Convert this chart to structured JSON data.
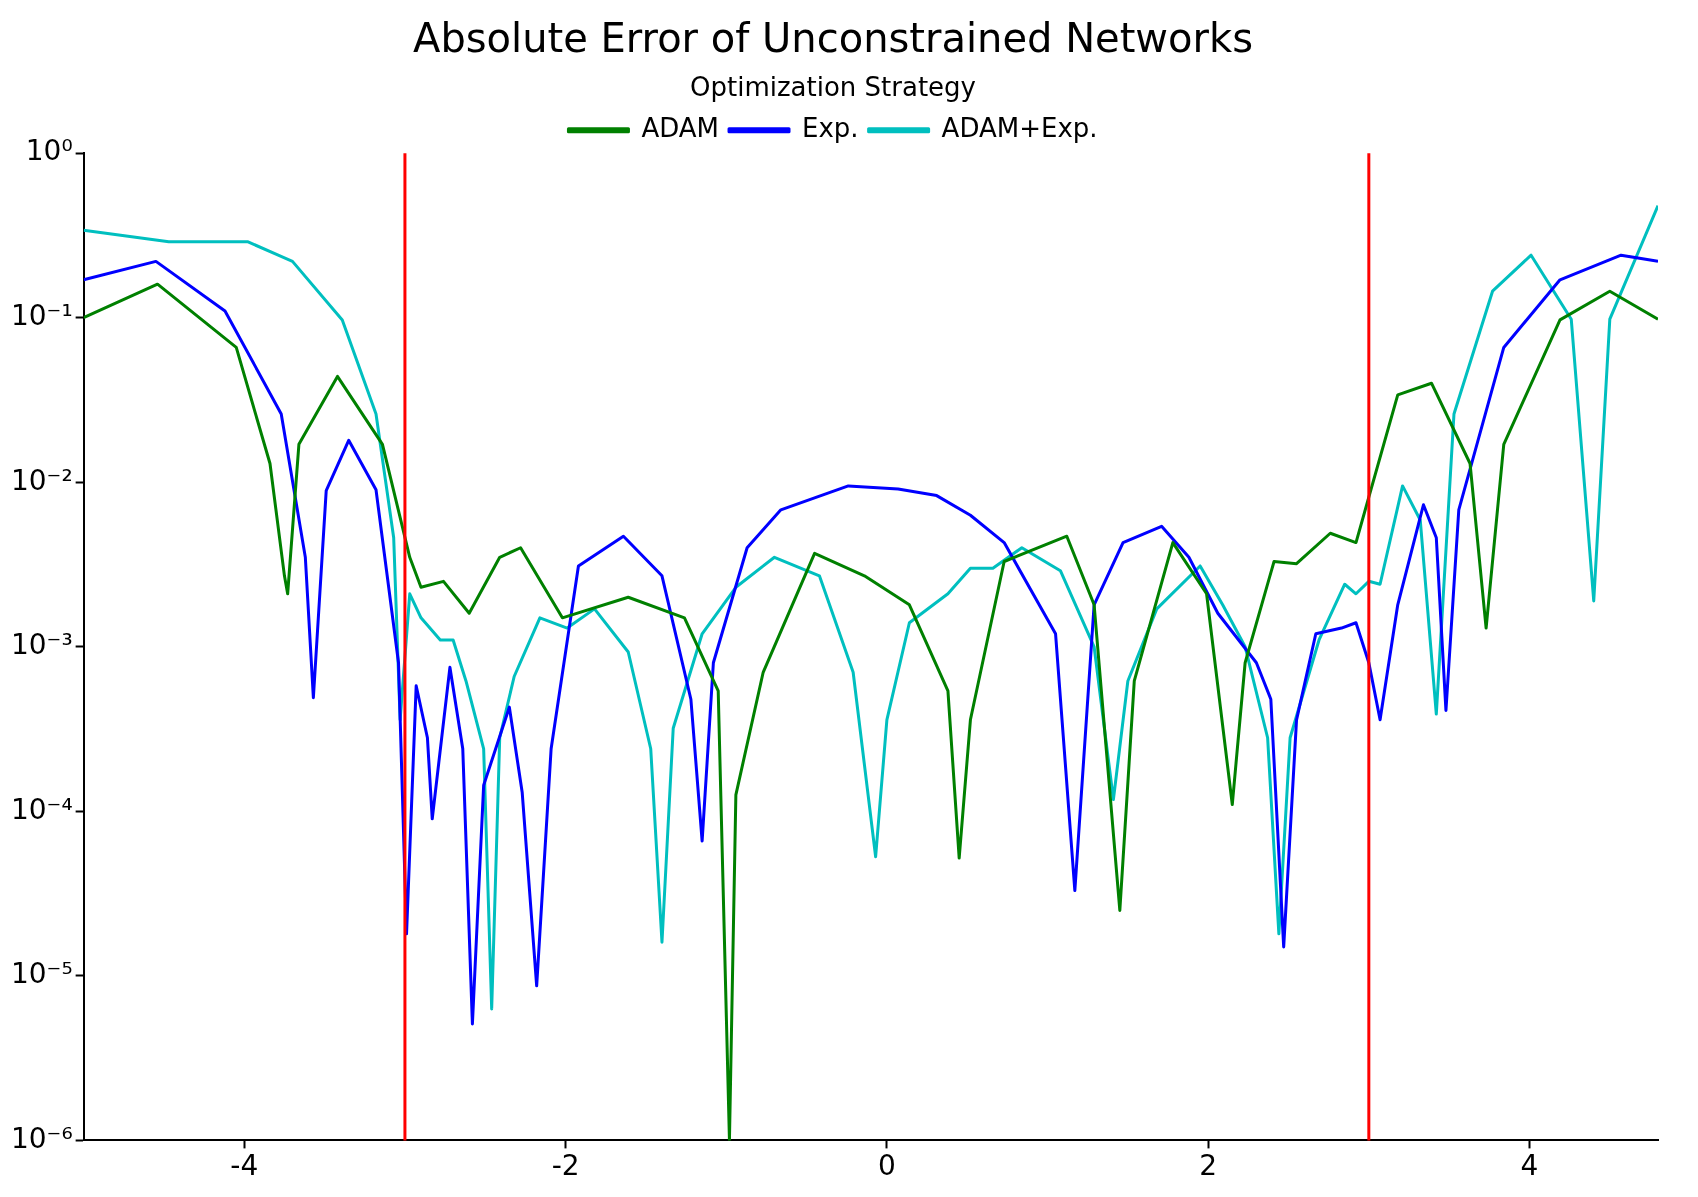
{
  "chart_data": {
    "type": "line",
    "title": "Absolute Error of Unconstrained Networks",
    "legend_title": "Optimization Strategy",
    "legend": "top",
    "log": "y",
    "grid": false,
    "xlim": [
      -5,
      4.8
    ],
    "xticks": [
      -4,
      -2,
      0,
      2,
      4
    ],
    "ylim": [
      1e-06,
      1
    ],
    "yticks": [
      {
        "value": 1,
        "label": "10⁰"
      },
      {
        "value": 0.1,
        "label": "10⁻¹"
      },
      {
        "value": 0.01,
        "label": "10⁻²"
      },
      {
        "value": 0.001,
        "label": "10⁻³"
      },
      {
        "value": 0.0001,
        "label": "10⁻⁴"
      },
      {
        "value": 1e-05,
        "label": "10⁻⁵"
      },
      {
        "value": 1e-06,
        "label": "10⁻⁶"
      }
    ],
    "ref_lines": [
      {
        "axis": "x",
        "value": -3,
        "color": "#ff0000"
      },
      {
        "axis": "x",
        "value": 3,
        "color": "#ff0000"
      }
    ],
    "series": [
      {
        "name": "ADAM",
        "color": "#008000",
        "x": [
          -5.0,
          -4.54,
          -4.05,
          -3.84,
          -3.75,
          -3.73,
          -3.66,
          -3.42,
          -3.14,
          -2.97,
          -2.9,
          -2.76,
          -2.6,
          -2.41,
          -2.28,
          -2.02,
          -1.61,
          -1.26,
          -1.05,
          -0.98,
          -0.94,
          -0.77,
          -0.45,
          -0.14,
          0.14,
          0.38,
          0.45,
          0.52,
          0.73,
          1.12,
          1.29,
          1.45,
          1.54,
          1.78,
          1.99,
          2.15,
          2.23,
          2.41,
          2.55,
          2.76,
          2.92,
          3.18,
          3.39,
          3.63,
          3.73,
          3.84,
          4.19,
          4.5,
          4.8
        ],
        "values": [
          0.1,
          0.16,
          0.066,
          0.013,
          0.0027,
          0.0021,
          0.017,
          0.044,
          0.017,
          0.0035,
          0.0023,
          0.0025,
          0.0016,
          0.0035,
          0.004,
          0.0015,
          0.002,
          0.0015,
          0.00054,
          1e-06,
          0.000126,
          0.0007,
          0.0037,
          0.0027,
          0.0018,
          0.00054,
          5.2e-05,
          0.00036,
          0.0033,
          0.0047,
          0.0018,
          2.5e-05,
          0.00062,
          0.0043,
          0.0021,
          0.00011,
          0.0008,
          0.0033,
          0.0032,
          0.0049,
          0.0043,
          0.034,
          0.04,
          0.013,
          0.0013,
          0.017,
          0.097,
          0.145,
          0.098
        ]
      },
      {
        "name": "Exp.",
        "color": "#0000ff",
        "x": [
          -5.0,
          -4.55,
          -4.12,
          -3.77,
          -3.62,
          -3.57,
          -3.49,
          -3.35,
          -3.18,
          -3.04,
          -2.99,
          -2.93,
          -2.86,
          -2.83,
          -2.72,
          -2.64,
          -2.58,
          -2.51,
          -2.35,
          -2.27,
          -2.18,
          -2.09,
          -1.92,
          -1.64,
          -1.4,
          -1.22,
          -1.15,
          -1.08,
          -0.87,
          -0.66,
          -0.24,
          0.07,
          0.31,
          0.52,
          0.73,
          1.05,
          1.17,
          1.29,
          1.47,
          1.71,
          1.88,
          2.06,
          2.3,
          2.39,
          2.47,
          2.55,
          2.67,
          2.83,
          2.92,
          3.0,
          3.07,
          3.18,
          3.34,
          3.42,
          3.48,
          3.56,
          3.84,
          4.19,
          4.57,
          4.8
        ],
        "values": [
          0.17,
          0.22,
          0.11,
          0.026,
          0.0035,
          0.00049,
          0.0089,
          0.018,
          0.009,
          0.0008,
          1.8e-05,
          0.00058,
          0.00028,
          9e-05,
          0.00075,
          0.00024,
          5.1e-06,
          0.000144,
          0.00043,
          0.00013,
          8.7e-06,
          0.00024,
          0.0031,
          0.0047,
          0.0027,
          0.00048,
          6.6e-05,
          0.0008,
          0.004,
          0.0068,
          0.0095,
          0.0091,
          0.0083,
          0.0063,
          0.0043,
          0.0012,
          3.3e-05,
          0.0018,
          0.0043,
          0.0054,
          0.0035,
          0.0016,
          0.0008,
          0.00048,
          1.5e-05,
          0.00036,
          0.0012,
          0.0013,
          0.0014,
          0.0008,
          0.00036,
          0.0018,
          0.0073,
          0.0046,
          0.00041,
          0.0068,
          0.066,
          0.17,
          0.24,
          0.22
        ]
      },
      {
        "name": "ADAM+Exp.",
        "color": "#00bfbf",
        "x": [
          -5.0,
          -4.47,
          -3.98,
          -3.7,
          -3.39,
          -3.18,
          -3.07,
          -3.03,
          -2.97,
          -2.9,
          -2.78,
          -2.7,
          -2.62,
          -2.51,
          -2.46,
          -2.41,
          -2.32,
          -2.16,
          -1.99,
          -1.82,
          -1.61,
          -1.47,
          -1.4,
          -1.33,
          -1.15,
          -0.94,
          -0.7,
          -0.42,
          -0.21,
          -0.07,
          0.0,
          0.14,
          0.38,
          0.52,
          0.66,
          0.84,
          1.08,
          1.29,
          1.41,
          1.5,
          1.68,
          1.95,
          2.09,
          2.23,
          2.37,
          2.44,
          2.51,
          2.69,
          2.85,
          2.92,
          3.0,
          3.07,
          3.21,
          3.32,
          3.42,
          3.53,
          3.77,
          4.01,
          4.26,
          4.4,
          4.5,
          4.8
        ],
        "values": [
          0.34,
          0.29,
          0.29,
          0.22,
          0.097,
          0.026,
          0.0046,
          0.00036,
          0.0021,
          0.0015,
          0.0011,
          0.0011,
          0.00062,
          0.00024,
          6.3e-06,
          0.00028,
          0.00066,
          0.0015,
          0.0013,
          0.0017,
          0.00093,
          0.00024,
          1.6e-05,
          0.00032,
          0.0012,
          0.0023,
          0.0035,
          0.0027,
          0.0007,
          5.3e-05,
          0.00036,
          0.0014,
          0.0021,
          0.003,
          0.003,
          0.004,
          0.0029,
          0.001,
          0.000118,
          0.00062,
          0.0017,
          0.0031,
          0.0018,
          0.001,
          0.00028,
          1.8e-05,
          0.00028,
          0.0011,
          0.0024,
          0.0021,
          0.0025,
          0.0024,
          0.0095,
          0.0059,
          0.00039,
          0.026,
          0.145,
          0.24,
          0.098,
          0.0019,
          0.098,
          0.48
        ]
      }
    ]
  }
}
